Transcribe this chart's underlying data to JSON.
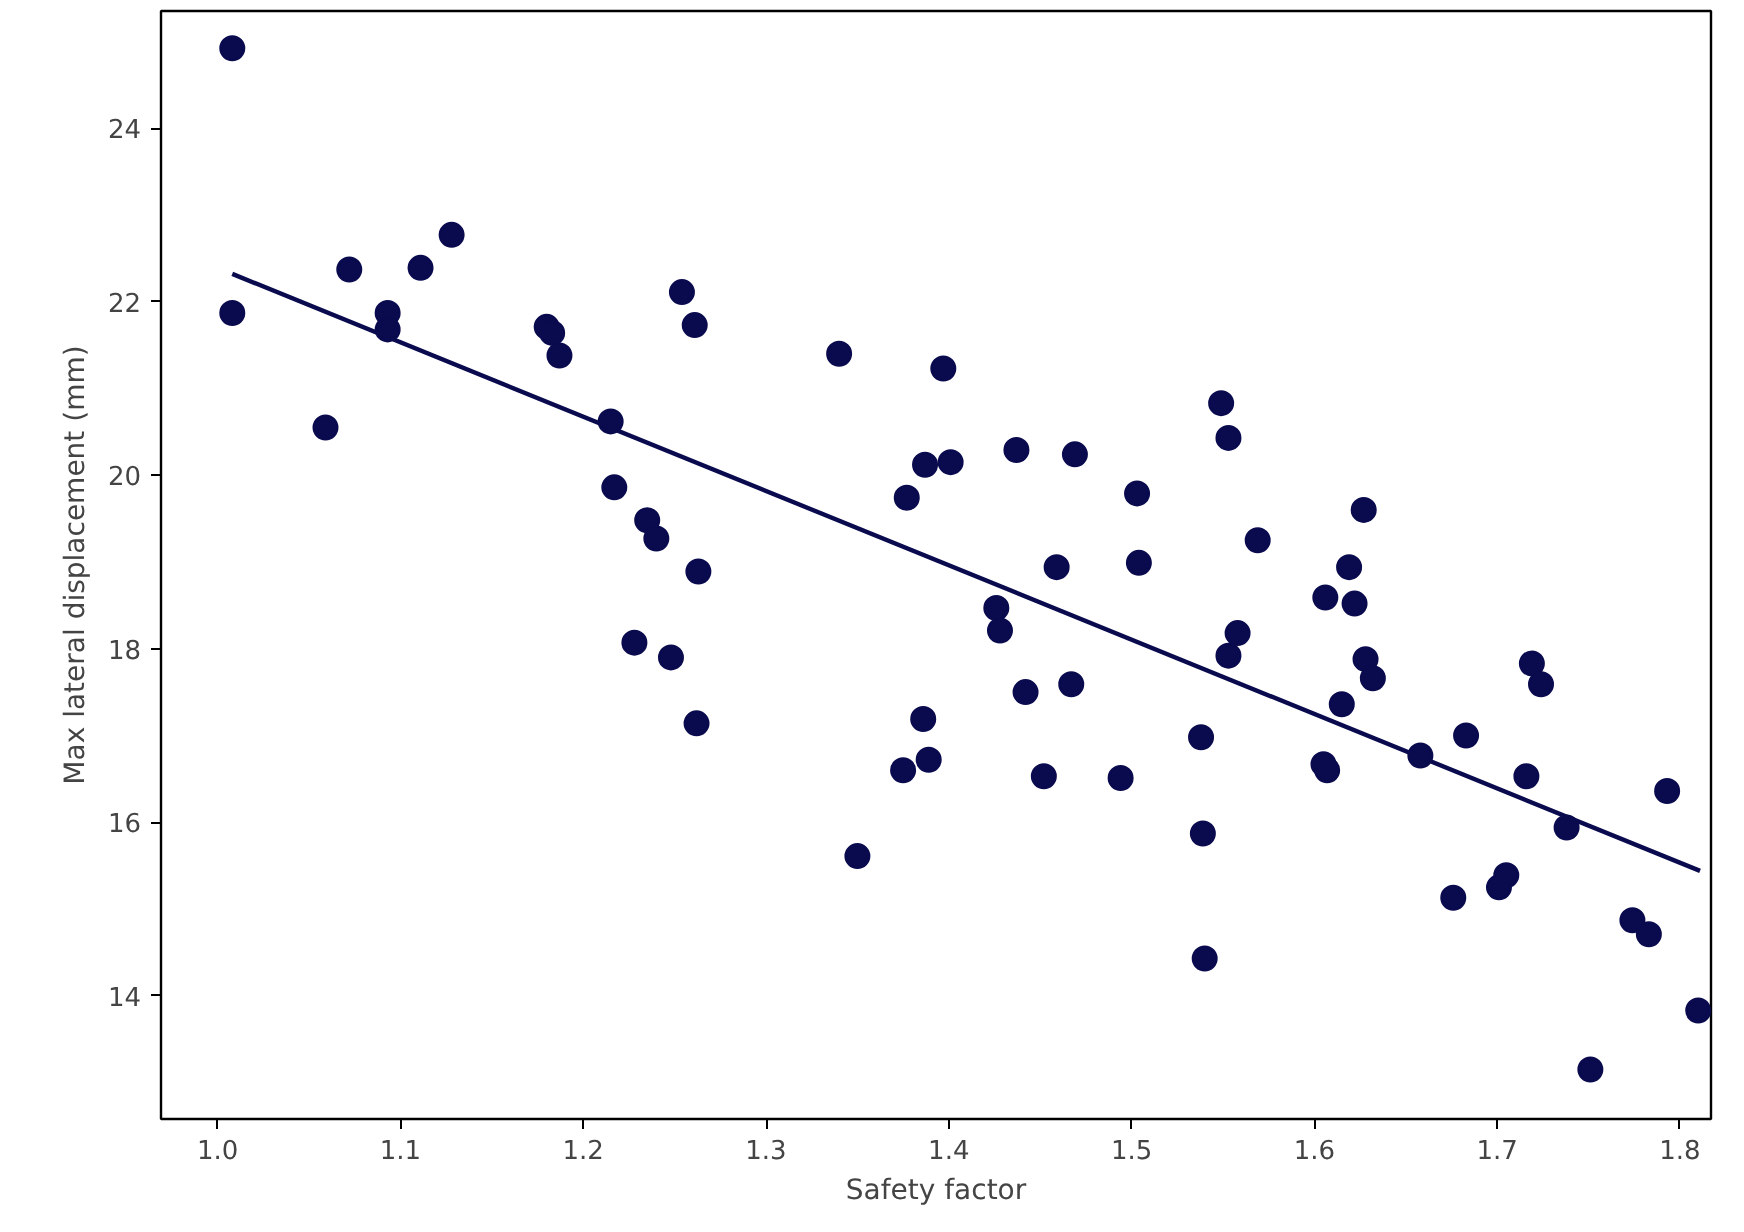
{
  "chart_data": {
    "type": "scatter",
    "xlabel": "Safety factor",
    "ylabel": "Max lateral displacement (mm)",
    "xlim": [
      0.969,
      1.817
    ],
    "ylim": [
      12.58,
      25.35
    ],
    "xticks": [
      {
        "value": 1.0,
        "label": "1.0"
      },
      1.1,
      1.2,
      1.3,
      1.4,
      1.5,
      1.6,
      1.7,
      1.8
    ],
    "yticks": [
      14,
      16,
      18,
      20,
      22,
      24
    ],
    "grid": false,
    "marker": "circle",
    "series": [
      {
        "color": "#0a0a4e",
        "x": [
          1.008,
          1.008,
          1.059,
          1.072,
          1.093,
          1.093,
          1.111,
          1.128,
          1.18,
          1.183,
          1.187,
          1.215,
          1.217,
          1.235,
          1.24,
          1.263,
          1.228,
          1.254,
          1.261,
          1.248,
          1.262,
          1.34,
          1.35,
          1.387,
          1.377,
          1.397,
          1.401,
          1.437,
          1.469,
          1.503,
          1.549,
          1.553,
          1.627,
          1.569,
          1.459,
          1.504,
          1.619,
          1.426,
          1.428,
          1.606,
          1.622,
          1.558,
          1.553,
          1.628,
          1.632,
          1.442,
          1.467,
          1.719,
          1.724,
          1.615,
          1.386,
          1.389,
          1.375,
          1.538,
          1.605,
          1.607,
          1.658,
          1.683,
          1.716,
          1.793,
          1.452,
          1.494,
          1.539,
          1.738,
          1.705,
          1.701,
          1.676,
          1.774,
          1.783,
          1.54,
          1.81,
          1.751
        ],
        "values": [
          24.92,
          21.87,
          20.55,
          22.37,
          21.87,
          21.68,
          22.39,
          22.77,
          21.71,
          21.64,
          21.38,
          20.62,
          19.86,
          19.48,
          19.27,
          18.89,
          18.07,
          22.11,
          21.73,
          17.9,
          17.14,
          21.4,
          15.61,
          20.12,
          19.74,
          21.23,
          20.15,
          20.29,
          20.24,
          19.79,
          20.83,
          20.43,
          19.6,
          19.25,
          18.94,
          18.99,
          18.94,
          18.47,
          18.21,
          18.59,
          18.52,
          18.18,
          17.92,
          17.88,
          17.66,
          17.5,
          17.59,
          17.83,
          17.59,
          17.36,
          17.19,
          16.72,
          16.6,
          16.98,
          16.67,
          16.6,
          16.77,
          17.0,
          16.53,
          16.36,
          16.53,
          16.51,
          15.87,
          15.94,
          15.39,
          15.25,
          15.13,
          14.87,
          14.71,
          14.43,
          13.83,
          13.15
        ]
      },
      {
        "type": "line",
        "color": "#0a0a4e",
        "marker": "none",
        "line_style": "solid",
        "x": [
          1.008,
          1.811
        ],
        "values": [
          22.32,
          15.44
        ]
      }
    ]
  }
}
